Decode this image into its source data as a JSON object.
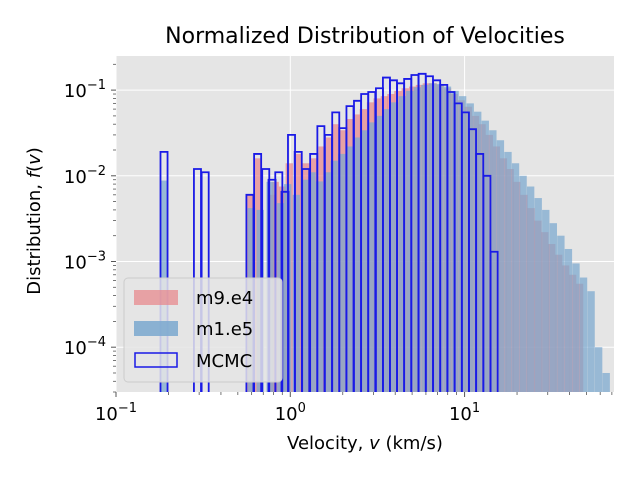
{
  "chart_data": {
    "type": "histogram",
    "title": "Normalized Distribution of Velocities",
    "xlabel_prefix": "Velocity, ",
    "xlabel_var": "v",
    "xlabel_suffix": " (km/s)",
    "ylabel_prefix": "Distribution, ",
    "ylabel_func": "f",
    "ylabel_var": "v",
    "x_scale": "log",
    "y_scale": "log",
    "xlim": [
      0.1,
      72
    ],
    "ylim": [
      3e-05,
      0.25
    ],
    "grid": true,
    "legend_position": "lower-left",
    "x_ticks": [
      {
        "value": 0.1,
        "base": "10",
        "exp": "−1"
      },
      {
        "value": 1,
        "base": "10",
        "exp": "0"
      },
      {
        "value": 10,
        "base": "10",
        "exp": "1"
      }
    ],
    "y_ticks": [
      {
        "value": 0.0001,
        "base": "10",
        "exp": "−4"
      },
      {
        "value": 0.001,
        "base": "10",
        "exp": "−3"
      },
      {
        "value": 0.01,
        "base": "10",
        "exp": "−2"
      },
      {
        "value": 0.1,
        "base": "10",
        "exp": "−1"
      }
    ],
    "series": [
      {
        "name": "m9.e4",
        "style": "filled",
        "color": "#e8878b",
        "bins": [
          [
            0.56,
            0.006
          ],
          [
            0.62,
            0.016
          ],
          [
            0.74,
            0.006
          ],
          [
            0.78,
            0.0085
          ],
          [
            0.86,
            0.0075
          ],
          [
            0.94,
            0.014
          ],
          [
            1.05,
            0.018
          ],
          [
            1.17,
            0.014
          ],
          [
            1.3,
            0.016
          ],
          [
            1.45,
            0.022
          ],
          [
            1.6,
            0.028
          ],
          [
            1.75,
            0.04
          ],
          [
            1.9,
            0.034
          ],
          [
            2.1,
            0.046
          ],
          [
            2.3,
            0.052
          ],
          [
            2.5,
            0.06
          ],
          [
            2.75,
            0.072
          ],
          [
            3.0,
            0.08
          ],
          [
            3.3,
            0.085
          ],
          [
            3.6,
            0.09
          ],
          [
            3.95,
            0.098
          ],
          [
            4.35,
            0.105
          ],
          [
            4.8,
            0.11
          ],
          [
            5.25,
            0.115
          ],
          [
            5.75,
            0.12
          ],
          [
            6.3,
            0.12
          ],
          [
            6.9,
            0.115
          ],
          [
            7.6,
            0.105
          ],
          [
            8.3,
            0.09
          ],
          [
            9.1,
            0.076
          ],
          [
            10.0,
            0.064
          ],
          [
            11.0,
            0.05
          ],
          [
            12.0,
            0.04
          ],
          [
            13.2,
            0.03
          ],
          [
            14.5,
            0.022
          ],
          [
            15.9,
            0.016
          ],
          [
            17.4,
            0.012
          ],
          [
            19.0,
            0.0085
          ],
          [
            20.9,
            0.006
          ],
          [
            22.9,
            0.0042
          ],
          [
            25.1,
            0.003
          ],
          [
            27.5,
            0.0022
          ],
          [
            30.1,
            0.0016
          ],
          [
            33.0,
            0.0012
          ],
          [
            36.2,
            0.0009
          ],
          [
            39.7,
            0.0007
          ],
          [
            43.5,
            0.00055
          ]
        ]
      },
      {
        "name": "m1.e5",
        "style": "filled",
        "color": "#7aa8cf",
        "bins": [
          [
            0.18,
            0.0088
          ],
          [
            0.57,
            0.0042
          ],
          [
            0.64,
            0.004
          ],
          [
            0.73,
            0.0085
          ],
          [
            0.84,
            0.0048
          ],
          [
            0.92,
            0.008
          ],
          [
            1.03,
            0.006
          ],
          [
            1.15,
            0.009
          ],
          [
            1.27,
            0.011
          ],
          [
            1.4,
            0.0086
          ],
          [
            1.55,
            0.011
          ],
          [
            1.7,
            0.015
          ],
          [
            1.88,
            0.018
          ],
          [
            2.08,
            0.022
          ],
          [
            2.3,
            0.028
          ],
          [
            2.53,
            0.034
          ],
          [
            2.8,
            0.042
          ],
          [
            3.1,
            0.05
          ],
          [
            3.42,
            0.06
          ],
          [
            3.78,
            0.072
          ],
          [
            4.18,
            0.085
          ],
          [
            4.62,
            0.098
          ],
          [
            5.1,
            0.108
          ],
          [
            5.64,
            0.115
          ],
          [
            6.23,
            0.12
          ],
          [
            6.88,
            0.118
          ],
          [
            7.6,
            0.11
          ],
          [
            8.4,
            0.098
          ],
          [
            9.28,
            0.085
          ],
          [
            10.26,
            0.07
          ],
          [
            11.33,
            0.056
          ],
          [
            12.52,
            0.044
          ],
          [
            13.84,
            0.034
          ],
          [
            15.29,
            0.026
          ],
          [
            16.9,
            0.019
          ],
          [
            18.67,
            0.014
          ],
          [
            20.63,
            0.01
          ],
          [
            22.8,
            0.0075
          ],
          [
            25.2,
            0.0055
          ],
          [
            27.84,
            0.004
          ],
          [
            30.76,
            0.0028
          ],
          [
            33.99,
            0.002
          ],
          [
            37.56,
            0.0014
          ],
          [
            41.5,
            0.00095
          ],
          [
            45.86,
            0.00065
          ],
          [
            50.67,
            0.00045
          ],
          [
            55.99,
            0.0001
          ],
          [
            61.87,
            5e-05
          ]
        ]
      },
      {
        "name": "MCMC",
        "style": "step",
        "color": "#1a1ae6",
        "bins": [
          [
            0.18,
            0.019
          ],
          [
            0.28,
            0.012
          ],
          [
            0.31,
            0.011
          ],
          [
            0.56,
            0.006
          ],
          [
            0.62,
            0.018
          ],
          [
            0.69,
            0.012
          ],
          [
            0.75,
            0.009
          ],
          [
            0.82,
            0.011
          ],
          [
            0.89,
            0.0065
          ],
          [
            0.97,
            0.03
          ],
          [
            1.06,
            0.019
          ],
          [
            1.17,
            0.012
          ],
          [
            1.3,
            0.018
          ],
          [
            1.43,
            0.038
          ],
          [
            1.58,
            0.03
          ],
          [
            1.74,
            0.055
          ],
          [
            1.91,
            0.036
          ],
          [
            2.1,
            0.065
          ],
          [
            2.32,
            0.075
          ],
          [
            2.55,
            0.09
          ],
          [
            2.8,
            0.095
          ],
          [
            3.1,
            0.105
          ],
          [
            3.4,
            0.14
          ],
          [
            3.73,
            0.13
          ],
          [
            4.1,
            0.12
          ],
          [
            4.5,
            0.135
          ],
          [
            4.95,
            0.15
          ],
          [
            5.45,
            0.155
          ],
          [
            6.0,
            0.145
          ],
          [
            6.6,
            0.13
          ],
          [
            7.25,
            0.115
          ],
          [
            7.98,
            0.095
          ],
          [
            8.78,
            0.07
          ],
          [
            9.65,
            0.055
          ],
          [
            10.6,
            0.035
          ],
          [
            11.66,
            0.018
          ],
          [
            12.82,
            0.01
          ],
          [
            14.1,
            0.0013
          ]
        ]
      }
    ]
  }
}
